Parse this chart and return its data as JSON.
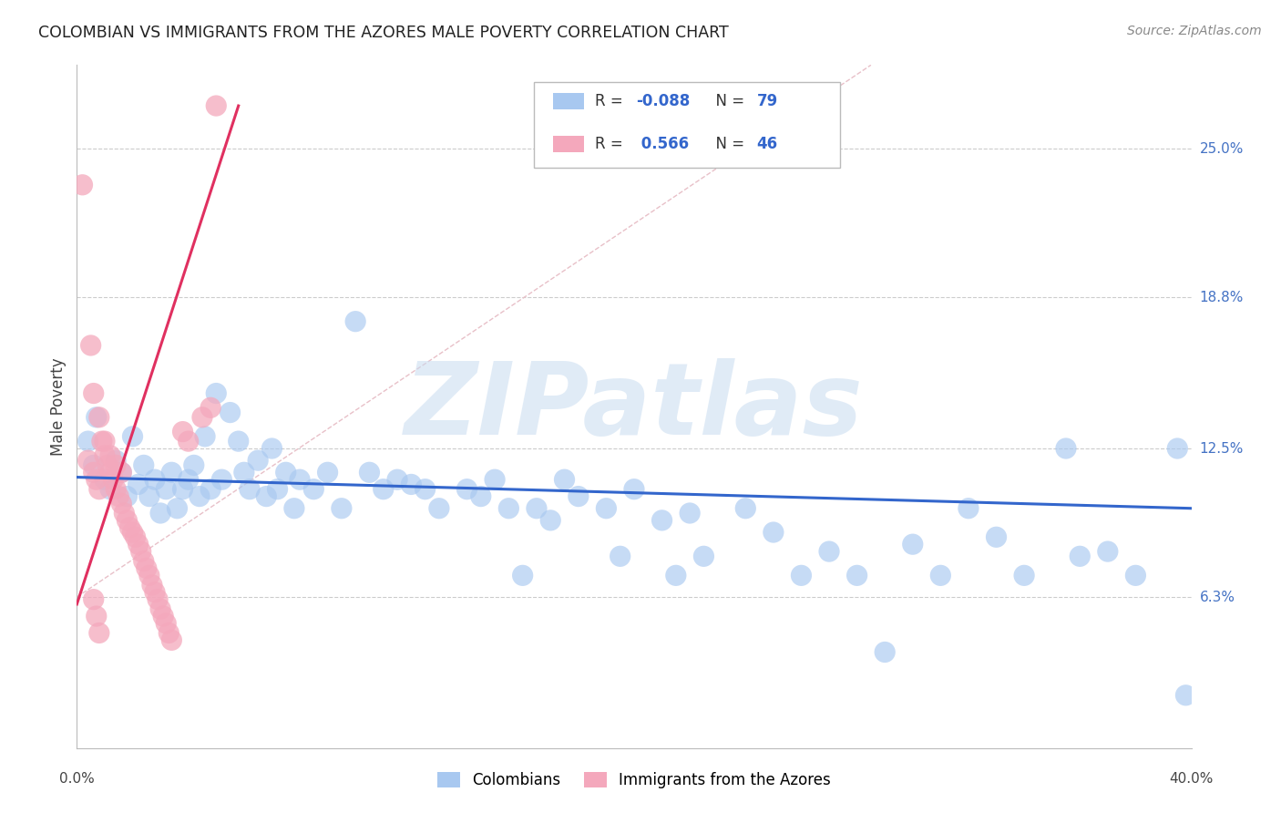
{
  "title": "COLOMBIAN VS IMMIGRANTS FROM THE AZORES MALE POVERTY CORRELATION CHART",
  "source": "Source: ZipAtlas.com",
  "ylabel": "Male Poverty",
  "ytick_labels": [
    "6.3%",
    "12.5%",
    "18.8%",
    "25.0%"
  ],
  "ytick_values": [
    0.063,
    0.125,
    0.188,
    0.25
  ],
  "xlim": [
    0.0,
    0.4
  ],
  "ylim": [
    0.0,
    0.285
  ],
  "watermark": "ZIPatlas",
  "legend": {
    "blue_R": "-0.088",
    "blue_N": "79",
    "pink_R": "0.566",
    "pink_N": "46"
  },
  "blue_color": "#A8C8F0",
  "pink_color": "#F4A8BC",
  "blue_line_color": "#3366CC",
  "pink_line_color": "#E03060",
  "blue_scatter": [
    [
      0.004,
      0.128
    ],
    [
      0.006,
      0.118
    ],
    [
      0.007,
      0.138
    ],
    [
      0.01,
      0.112
    ],
    [
      0.012,
      0.108
    ],
    [
      0.014,
      0.12
    ],
    [
      0.016,
      0.115
    ],
    [
      0.018,
      0.105
    ],
    [
      0.02,
      0.13
    ],
    [
      0.022,
      0.11
    ],
    [
      0.024,
      0.118
    ],
    [
      0.026,
      0.105
    ],
    [
      0.028,
      0.112
    ],
    [
      0.03,
      0.098
    ],
    [
      0.032,
      0.108
    ],
    [
      0.034,
      0.115
    ],
    [
      0.036,
      0.1
    ],
    [
      0.038,
      0.108
    ],
    [
      0.04,
      0.112
    ],
    [
      0.042,
      0.118
    ],
    [
      0.044,
      0.105
    ],
    [
      0.046,
      0.13
    ],
    [
      0.048,
      0.108
    ],
    [
      0.05,
      0.148
    ],
    [
      0.052,
      0.112
    ],
    [
      0.055,
      0.14
    ],
    [
      0.058,
      0.128
    ],
    [
      0.06,
      0.115
    ],
    [
      0.062,
      0.108
    ],
    [
      0.065,
      0.12
    ],
    [
      0.068,
      0.105
    ],
    [
      0.07,
      0.125
    ],
    [
      0.072,
      0.108
    ],
    [
      0.075,
      0.115
    ],
    [
      0.078,
      0.1
    ],
    [
      0.08,
      0.112
    ],
    [
      0.085,
      0.108
    ],
    [
      0.09,
      0.115
    ],
    [
      0.095,
      0.1
    ],
    [
      0.1,
      0.178
    ],
    [
      0.105,
      0.115
    ],
    [
      0.11,
      0.108
    ],
    [
      0.115,
      0.112
    ],
    [
      0.12,
      0.11
    ],
    [
      0.125,
      0.108
    ],
    [
      0.13,
      0.1
    ],
    [
      0.14,
      0.108
    ],
    [
      0.145,
      0.105
    ],
    [
      0.15,
      0.112
    ],
    [
      0.155,
      0.1
    ],
    [
      0.16,
      0.072
    ],
    [
      0.165,
      0.1
    ],
    [
      0.17,
      0.095
    ],
    [
      0.175,
      0.112
    ],
    [
      0.18,
      0.105
    ],
    [
      0.19,
      0.1
    ],
    [
      0.195,
      0.08
    ],
    [
      0.2,
      0.108
    ],
    [
      0.21,
      0.095
    ],
    [
      0.215,
      0.072
    ],
    [
      0.22,
      0.098
    ],
    [
      0.225,
      0.08
    ],
    [
      0.24,
      0.1
    ],
    [
      0.25,
      0.09
    ],
    [
      0.26,
      0.072
    ],
    [
      0.27,
      0.082
    ],
    [
      0.28,
      0.072
    ],
    [
      0.29,
      0.04
    ],
    [
      0.3,
      0.085
    ],
    [
      0.31,
      0.072
    ],
    [
      0.32,
      0.1
    ],
    [
      0.33,
      0.088
    ],
    [
      0.34,
      0.072
    ],
    [
      0.355,
      0.125
    ],
    [
      0.36,
      0.08
    ],
    [
      0.37,
      0.082
    ],
    [
      0.38,
      0.072
    ],
    [
      0.395,
      0.125
    ],
    [
      0.398,
      0.022
    ]
  ],
  "pink_scatter": [
    [
      0.002,
      0.235
    ],
    [
      0.005,
      0.168
    ],
    [
      0.006,
      0.148
    ],
    [
      0.008,
      0.138
    ],
    [
      0.009,
      0.128
    ],
    [
      0.01,
      0.122
    ],
    [
      0.011,
      0.118
    ],
    [
      0.012,
      0.115
    ],
    [
      0.013,
      0.112
    ],
    [
      0.014,
      0.108
    ],
    [
      0.015,
      0.105
    ],
    [
      0.016,
      0.102
    ],
    [
      0.017,
      0.098
    ],
    [
      0.018,
      0.095
    ],
    [
      0.019,
      0.092
    ],
    [
      0.02,
      0.09
    ],
    [
      0.021,
      0.088
    ],
    [
      0.022,
      0.085
    ],
    [
      0.023,
      0.082
    ],
    [
      0.024,
      0.078
    ],
    [
      0.025,
      0.075
    ],
    [
      0.026,
      0.072
    ],
    [
      0.027,
      0.068
    ],
    [
      0.028,
      0.065
    ],
    [
      0.029,
      0.062
    ],
    [
      0.03,
      0.058
    ],
    [
      0.031,
      0.055
    ],
    [
      0.032,
      0.052
    ],
    [
      0.033,
      0.048
    ],
    [
      0.034,
      0.045
    ],
    [
      0.004,
      0.12
    ],
    [
      0.006,
      0.115
    ],
    [
      0.007,
      0.112
    ],
    [
      0.008,
      0.108
    ],
    [
      0.01,
      0.128
    ],
    [
      0.012,
      0.122
    ],
    [
      0.014,
      0.118
    ],
    [
      0.016,
      0.115
    ],
    [
      0.038,
      0.132
    ],
    [
      0.04,
      0.128
    ],
    [
      0.045,
      0.138
    ],
    [
      0.048,
      0.142
    ],
    [
      0.05,
      0.268
    ],
    [
      0.006,
      0.062
    ],
    [
      0.007,
      0.055
    ],
    [
      0.008,
      0.048
    ]
  ],
  "blue_trendline": {
    "x_start": 0.0,
    "y_start": 0.113,
    "x_end": 0.4,
    "y_end": 0.1
  },
  "pink_trendline": {
    "x_start": 0.0,
    "y_start": 0.06,
    "x_end": 0.058,
    "y_end": 0.268
  },
  "dashed_line": {
    "x_start": 0.0,
    "y_start": 0.063,
    "x_end": 0.285,
    "y_end": 0.285
  }
}
